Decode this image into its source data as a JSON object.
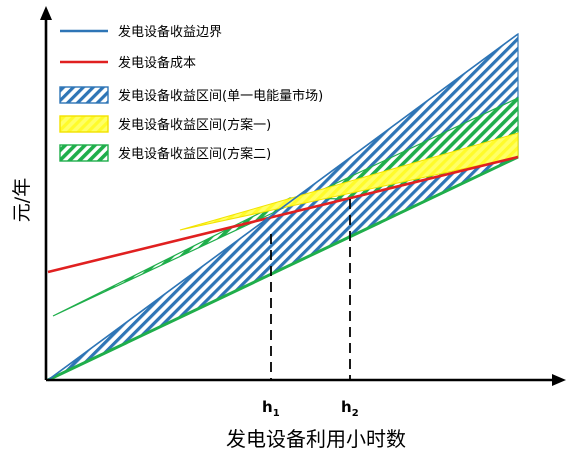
{
  "diagram": {
    "x_axis_label": "发电设备利用小时数",
    "y_axis_label": "元/年",
    "ticks": [
      {
        "base": "h",
        "sub": "1"
      },
      {
        "base": "h",
        "sub": "2"
      }
    ],
    "legend": [
      {
        "label": "发电设备收益边界",
        "kind": "line",
        "color": "#2e75b6"
      },
      {
        "label": "发电设备成本",
        "kind": "line",
        "color": "#e02020"
      },
      {
        "label": "发电设备收益区间(单一电能量市场)",
        "kind": "hatch",
        "color": "#2e75b6"
      },
      {
        "label": "发电设备收益区间(方案一)",
        "kind": "hatch",
        "color": "#ffff33"
      },
      {
        "label": "发电设备收益区间(方案二)",
        "kind": "hatch",
        "color": "#1fae4b"
      }
    ],
    "colors": {
      "blue": "#2e75b6",
      "red": "#e02020",
      "yellow": "#ffff33",
      "green": "#1fae4b",
      "axis": "#000000"
    }
  }
}
